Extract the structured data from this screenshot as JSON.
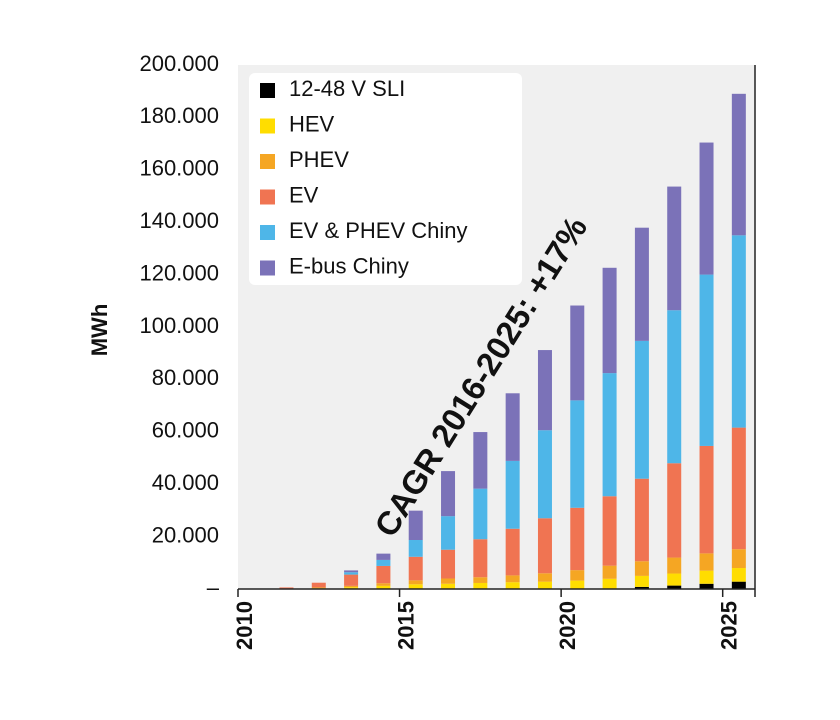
{
  "chart_data": {
    "type": "bar",
    "stacked": true,
    "x": [
      2010,
      2011,
      2012,
      2013,
      2014,
      2015,
      2016,
      2017,
      2018,
      2019,
      2020,
      2021,
      2022,
      2023,
      2024,
      2025
    ],
    "x_tick_labels": [
      "2010",
      "2015",
      "2020",
      "2025"
    ],
    "ylabel": "MWh",
    "ylim": [
      0,
      200000
    ],
    "y_tick_labels": [
      "–",
      "20.000",
      "40.000",
      "60.000",
      "80.000",
      "100.000",
      "120.000",
      "140.000",
      "160.000",
      "180.000",
      "200.000"
    ],
    "grid": false,
    "plot_background": "#f0f0f0",
    "legend_position": "top-left",
    "annotation": "CAGR 2016-2025: +17%",
    "series": [
      {
        "name": "12-48 V SLI",
        "color": "#000000",
        "values": [
          0,
          0,
          0,
          0,
          0,
          0,
          0,
          0,
          0,
          0,
          0,
          200,
          800,
          1300,
          2000,
          2800
        ]
      },
      {
        "name": "HEV",
        "color": "#ffdd00",
        "values": [
          0,
          100,
          300,
          700,
          1200,
          1800,
          2000,
          2300,
          2600,
          2800,
          3200,
          3700,
          4200,
          4600,
          5000,
          5200
        ]
      },
      {
        "name": "PHEV",
        "color": "#f5a623",
        "values": [
          0,
          100,
          300,
          500,
          1000,
          1500,
          2000,
          2200,
          2600,
          3200,
          4000,
          5000,
          5600,
          6100,
          6600,
          7200
        ]
      },
      {
        "name": "EV",
        "color": "#f07452",
        "values": [
          0,
          400,
          1800,
          4300,
          6600,
          9000,
          11000,
          14500,
          17800,
          21000,
          23800,
          26500,
          31500,
          36000,
          41000,
          46400
        ]
      },
      {
        "name": "EV & PHEV Chiny",
        "color": "#4eb6e8",
        "values": [
          0,
          0,
          0,
          900,
          2300,
          6400,
          12800,
          19300,
          25900,
          33600,
          41000,
          47000,
          52600,
          58400,
          65400,
          73400
        ]
      },
      {
        "name": "E-bus Chiny",
        "color": "#7b72b8",
        "values": [
          0,
          0,
          0,
          700,
          2400,
          11200,
          17200,
          21600,
          25800,
          30600,
          36200,
          40200,
          43200,
          47200,
          50400,
          54000
        ]
      }
    ]
  }
}
